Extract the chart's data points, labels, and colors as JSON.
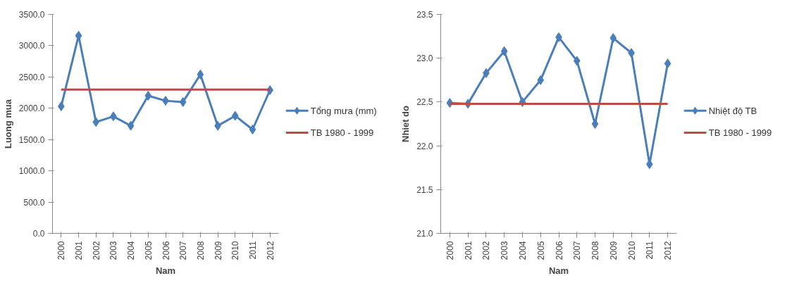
{
  "chart_data": [
    {
      "type": "line",
      "xlabel": "Nam",
      "ylabel": "Luong mua",
      "categories": [
        "2000",
        "2001",
        "2002",
        "2003",
        "2004",
        "2005",
        "2006",
        "2007",
        "2008",
        "2009",
        "2010",
        "2011",
        "2012"
      ],
      "series": [
        {
          "name": "Tổng mưa (mm)",
          "color": "#4a7ebb",
          "marker": "diamond",
          "values": [
            2030,
            3160,
            1780,
            1870,
            1720,
            2200,
            2120,
            2100,
            2540,
            1720,
            1880,
            1660,
            2290
          ]
        },
        {
          "name": "TB 1980 - 1999",
          "color": "#be4b48",
          "marker": "none",
          "values": [
            2300,
            2300,
            2300,
            2300,
            2300,
            2300,
            2300,
            2300,
            2300,
            2300,
            2300,
            2300,
            2300
          ]
        }
      ],
      "ylim": [
        0,
        3500
      ],
      "yticks": [
        {
          "value": 0,
          "label": "0.0"
        },
        {
          "value": 500,
          "label": "500.0"
        },
        {
          "value": 1000,
          "label": "1000.0"
        },
        {
          "value": 1500,
          "label": "1500.0"
        },
        {
          "value": 2000,
          "label": "2000.0"
        },
        {
          "value": 2500,
          "label": "2500.0"
        },
        {
          "value": 3000,
          "label": "3000.0"
        },
        {
          "value": 3500,
          "label": "3500.0"
        }
      ],
      "grid": false,
      "legend": "right"
    },
    {
      "type": "line",
      "xlabel": "Nam",
      "ylabel": "Nhiet do",
      "categories": [
        "2000",
        "2001",
        "2002",
        "2003",
        "2004",
        "2005",
        "2006",
        "2007",
        "2008",
        "2009",
        "2010",
        "2011",
        "2012"
      ],
      "series": [
        {
          "name": "Nhiệt độ TB",
          "color": "#4a7ebb",
          "marker": "diamond",
          "values": [
            22.49,
            22.48,
            22.83,
            23.08,
            22.5,
            22.75,
            23.24,
            22.97,
            22.25,
            23.23,
            23.06,
            21.79,
            22.94
          ]
        },
        {
          "name": "TB 1980 - 1999",
          "color": "#be4b48",
          "marker": "none",
          "values": [
            22.48,
            22.48,
            22.48,
            22.48,
            22.48,
            22.48,
            22.48,
            22.48,
            22.48,
            22.48,
            22.48,
            22.48,
            22.48
          ]
        }
      ],
      "ylim": [
        21.0,
        23.5
      ],
      "yticks": [
        {
          "value": 21.0,
          "label": "21.0"
        },
        {
          "value": 21.5,
          "label": "21.5"
        },
        {
          "value": 22.0,
          "label": "22.0"
        },
        {
          "value": 22.5,
          "label": "22.5"
        },
        {
          "value": 23.0,
          "label": "23.0"
        },
        {
          "value": 23.5,
          "label": "23.5"
        }
      ],
      "grid": false,
      "legend": "right"
    }
  ]
}
